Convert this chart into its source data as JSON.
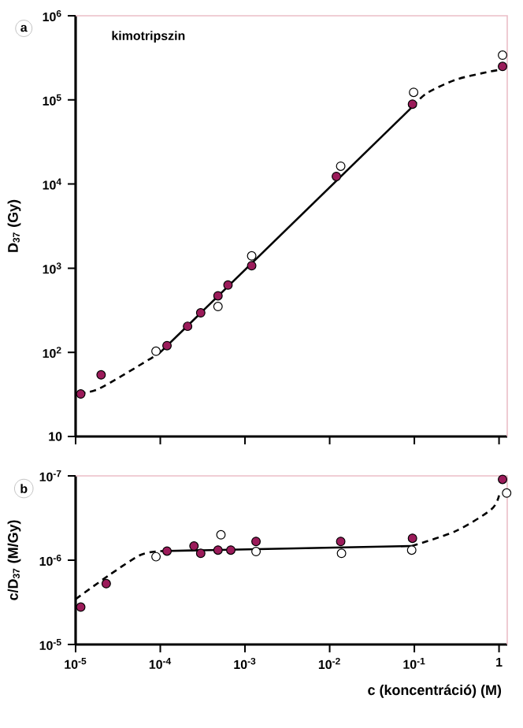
{
  "chart_data": [
    {
      "type": "scatter",
      "title": "kimotripszin",
      "ylabel": "D$_{37}$ (Gy)",
      "annotations": [
        "a"
      ],
      "log": "xy",
      "marker": "circle",
      "tick_labels": "y",
      "xlim": [
        1e-05,
        1.25
      ],
      "xticks": [
        1e-05,
        0.0001,
        0.001,
        0.01,
        0.1,
        1
      ],
      "ylim": [
        10,
        1000000
      ],
      "yticks": [
        10,
        {
          "value": 100,
          "label": "10$^{2}$"
        },
        {
          "value": 1000,
          "label": "10$^{3}$"
        },
        {
          "value": 10000,
          "label": "10$^{4}$"
        },
        {
          "value": 100000,
          "label": "10$^{5}$"
        },
        {
          "value": 1000000,
          "label": "10$^{6}$"
        }
      ],
      "series": [
        {
          "type": "line",
          "line_style": "dashed",
          "marker": "none",
          "color": "#000000",
          "x": [
            1.1e-05,
            1.9e-05,
            7.2e-05,
            0.0001
          ],
          "values": [
            33,
            37,
            81,
            100
          ]
        },
        {
          "type": "line",
          "line_style": "solid",
          "marker": "none",
          "color": "#000000",
          "x": [
            0.0001,
            0.095
          ],
          "values": [
            100,
            83000
          ]
        },
        {
          "type": "line",
          "line_style": "dashed",
          "marker": "none",
          "color": "#000000",
          "x": [
            0.095,
            0.14,
            0.31,
            0.76,
            1.1
          ],
          "values": [
            83000,
            120000,
            174000,
            216000,
            230000
          ]
        },
        {
          "color": "#9b1b5a",
          "x": [
            1.15e-05,
            2e-05,
            0.00012,
            0.00021,
            0.0003,
            0.00048,
            0.00063,
            0.0012,
            0.012,
            0.095,
            1.1
          ],
          "values": [
            32,
            54,
            120,
            204,
            295,
            470,
            630,
            1070,
            12300,
            89000,
            250000
          ]
        },
        {
          "color": "#ffffff",
          "x": [
            8.9e-05,
            0.00048,
            0.0012,
            0.0135,
            0.098,
            1.1
          ],
          "values": [
            103,
            350,
            1400,
            16300,
            123000,
            340000
          ]
        }
      ]
    },
    {
      "type": "scatter",
      "ylabel": "c/D$_{37}$ (M/Gy)",
      "xlabel": "c (koncentráció) (M)",
      "annotations": [
        "b"
      ],
      "log": "xy",
      "marker": "circle",
      "xlim": [
        1e-05,
        1.25
      ],
      "xticks": [
        {
          "value": 1e-05,
          "label": "10$^{-5}$"
        },
        {
          "value": 0.0001,
          "label": "10$^{-4}$"
        },
        {
          "value": 0.001,
          "label": "10$^{-3}$"
        },
        {
          "value": 0.01,
          "label": "10$^{-2}$"
        },
        {
          "value": 0.1,
          "label": "10$^{-1}$"
        },
        1
      ],
      "ylim": [
        1e-05,
        1e-07
      ],
      "yticks": [
        {
          "value": 1e-05,
          "label": "10$^{-5}$"
        },
        {
          "value": 1e-06,
          "label": "10$^{-6}$"
        },
        {
          "value": 1e-07,
          "label": "10$^{-7}$"
        }
      ],
      "series": [
        {
          "type": "line",
          "line_style": "dashed",
          "marker": "none",
          "color": "#000000",
          "x": [
            1e-05,
            2.5e-05,
            5.8e-05,
            0.0001
          ],
          "values": [
            2.9e-06,
            1.5e-06,
            8.7e-07,
            7.8e-07
          ]
        },
        {
          "type": "line",
          "line_style": "solid",
          "marker": "none",
          "color": "#000000",
          "x": [
            0.0001,
            0.093
          ],
          "values": [
            7.8e-07,
            6.8e-07
          ]
        },
        {
          "type": "line",
          "line_style": "dashed",
          "marker": "none",
          "color": "#000000",
          "x": [
            0.093,
            0.31,
            0.81,
            1.0
          ],
          "values": [
            6.8e-07,
            4.5e-07,
            2.5e-07,
            1.7e-07
          ]
        },
        {
          "color": "#9b1b5a",
          "x": [
            1.15e-05,
            2.3e-05,
            0.00012,
            0.00025,
            0.0003,
            0.00048,
            0.00068,
            0.00135,
            0.0135,
            0.095,
            1.1
          ],
          "values": [
            3.6e-06,
            1.9e-06,
            7.8e-07,
            6.8e-07,
            8.3e-07,
            7.6e-07,
            7.6e-07,
            6e-07,
            6e-07,
            5.5e-07,
            1.1e-07
          ]
        },
        {
          "color": "#ffffff",
          "x": [
            8.9e-05,
            0.00052,
            0.00135,
            0.0138,
            0.093,
            1.23
          ],
          "values": [
            9.1e-07,
            5e-07,
            7.9e-07,
            8.3e-07,
            7.6e-07,
            1.6e-07
          ]
        }
      ]
    }
  ]
}
